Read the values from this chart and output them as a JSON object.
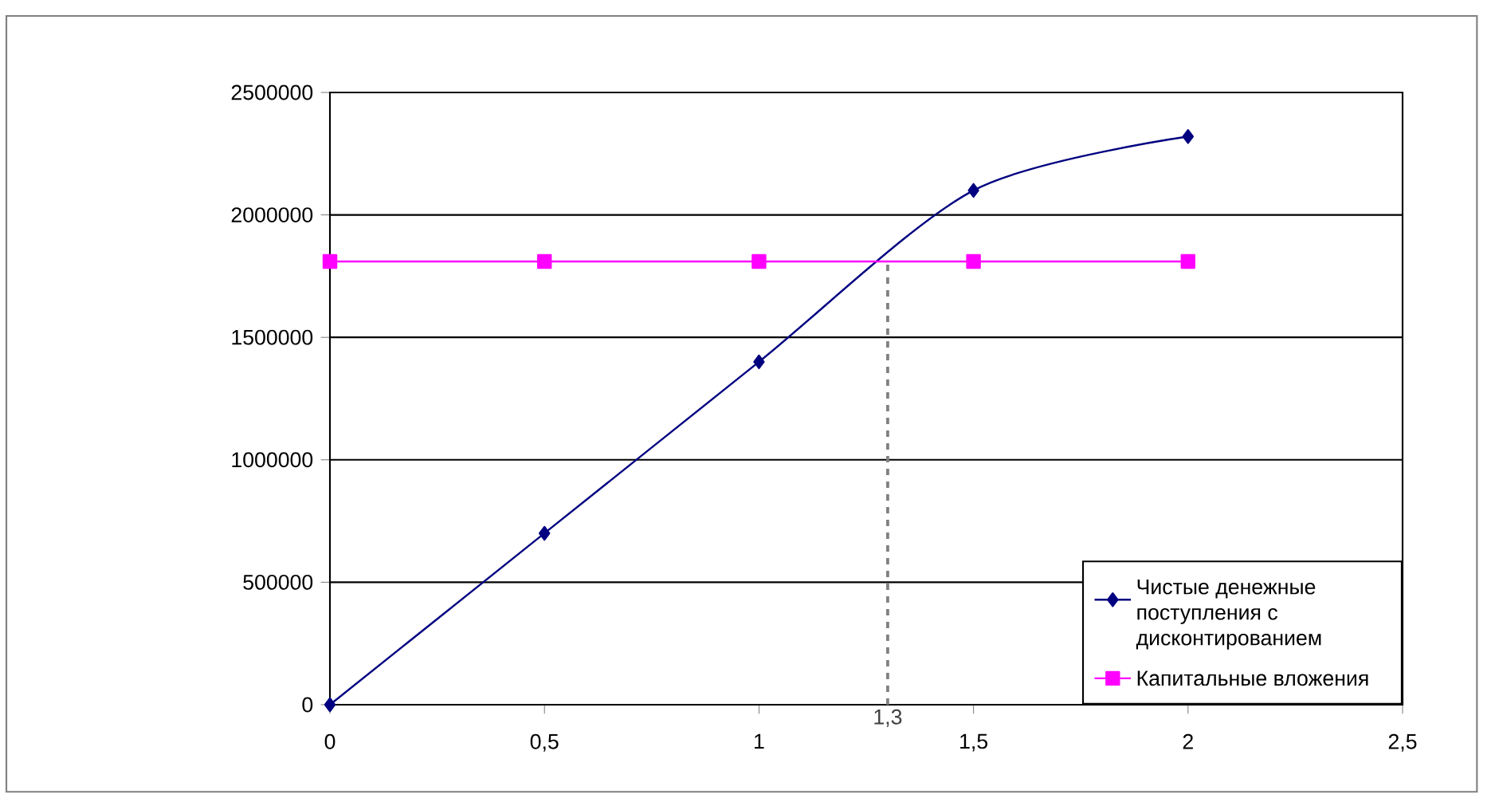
{
  "chart_data": {
    "type": "line",
    "x": [
      0,
      0.5,
      1,
      1.5,
      2
    ],
    "series": [
      {
        "name": "Чистые денежные поступления с дисконтированием",
        "color": "#000080",
        "marker": "diamond",
        "values": [
          0,
          700000,
          1400000,
          2100000,
          2320000
        ]
      },
      {
        "name": "Капитальные вложения",
        "color": "#ff00ff",
        "marker": "square",
        "values": [
          1810000,
          1810000,
          1810000,
          1810000,
          1810000
        ]
      }
    ],
    "xlim": [
      0,
      2.5
    ],
    "ylim": [
      0,
      2500000
    ],
    "xticks": [
      {
        "value": 0,
        "label": "0"
      },
      {
        "value": 0.5,
        "label": "0,5"
      },
      {
        "value": 1,
        "label": "1"
      },
      {
        "value": 1.5,
        "label": "1,5"
      },
      {
        "value": 2,
        "label": "2"
      },
      {
        "value": 2.5,
        "label": "2,5"
      }
    ],
    "yticks": [
      0,
      500000,
      1000000,
      1500000,
      2000000,
      2500000
    ],
    "grid": "y",
    "legend": "bottom right",
    "line_style": "solid",
    "ref_lines": [
      {
        "axis": "x",
        "value": 1.3,
        "label": "1,3",
        "color": "#808080",
        "line_style": "dashed"
      }
    ]
  }
}
